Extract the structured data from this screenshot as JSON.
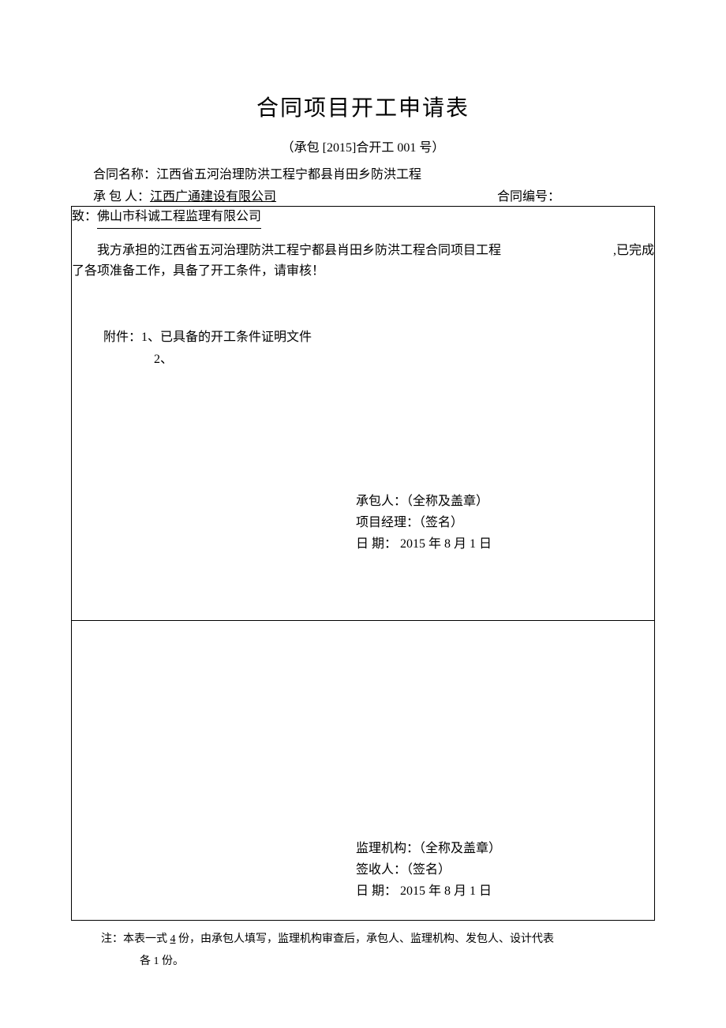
{
  "title": "合同项目开工申请表",
  "subtitle": "（承包 [2015]合开工  001 号）",
  "header": {
    "contract_name_label": "合同名称：",
    "contract_name": "江西省五河治理防洪工程宁都县肖田乡防洪工程",
    "contractor_label": "承 包 人：",
    "contractor": "江西广通建设有限公司",
    "contract_number_label": "合同编号："
  },
  "upper": {
    "to_label": "致：",
    "to_value": "佛山市科诚工程监理有限公司",
    "body_line1_prefix": "我方承担的",
    "body_line1_project": "江西省五河治理防洪工程宁都县肖田乡防洪工程合同项目工程",
    "body_line1_suffix": ",已完成",
    "body_line2": "了各项准备工作，具备了开工条件，请审核！",
    "attachments_label": "附件：",
    "attachment1": "1、已具备的开工条件证明文件",
    "attachment2": "2、",
    "sig_contractor_label": "承包人：（全称及盖章）",
    "sig_pm_label": "项目经理：（签名）",
    "sig_date_label": "日   期：",
    "sig_date_value": "   2015 年  8  月  1  日"
  },
  "lower": {
    "sig_org_label": "监理机构：（全称及盖章）",
    "sig_receiver_label": "签收人：（签名）",
    "sig_date_label": "日   期：",
    "sig_date_value": "   2015 年  8  月  1  日"
  },
  "footnote": {
    "line1_prefix": "注：本表一式 ",
    "line1_copies": "4",
    "line1_suffix": " 份，由承包人填写，监理机构审查后，承包人、监理机构、发包人、设计代表",
    "line2": "各 1 份。"
  }
}
